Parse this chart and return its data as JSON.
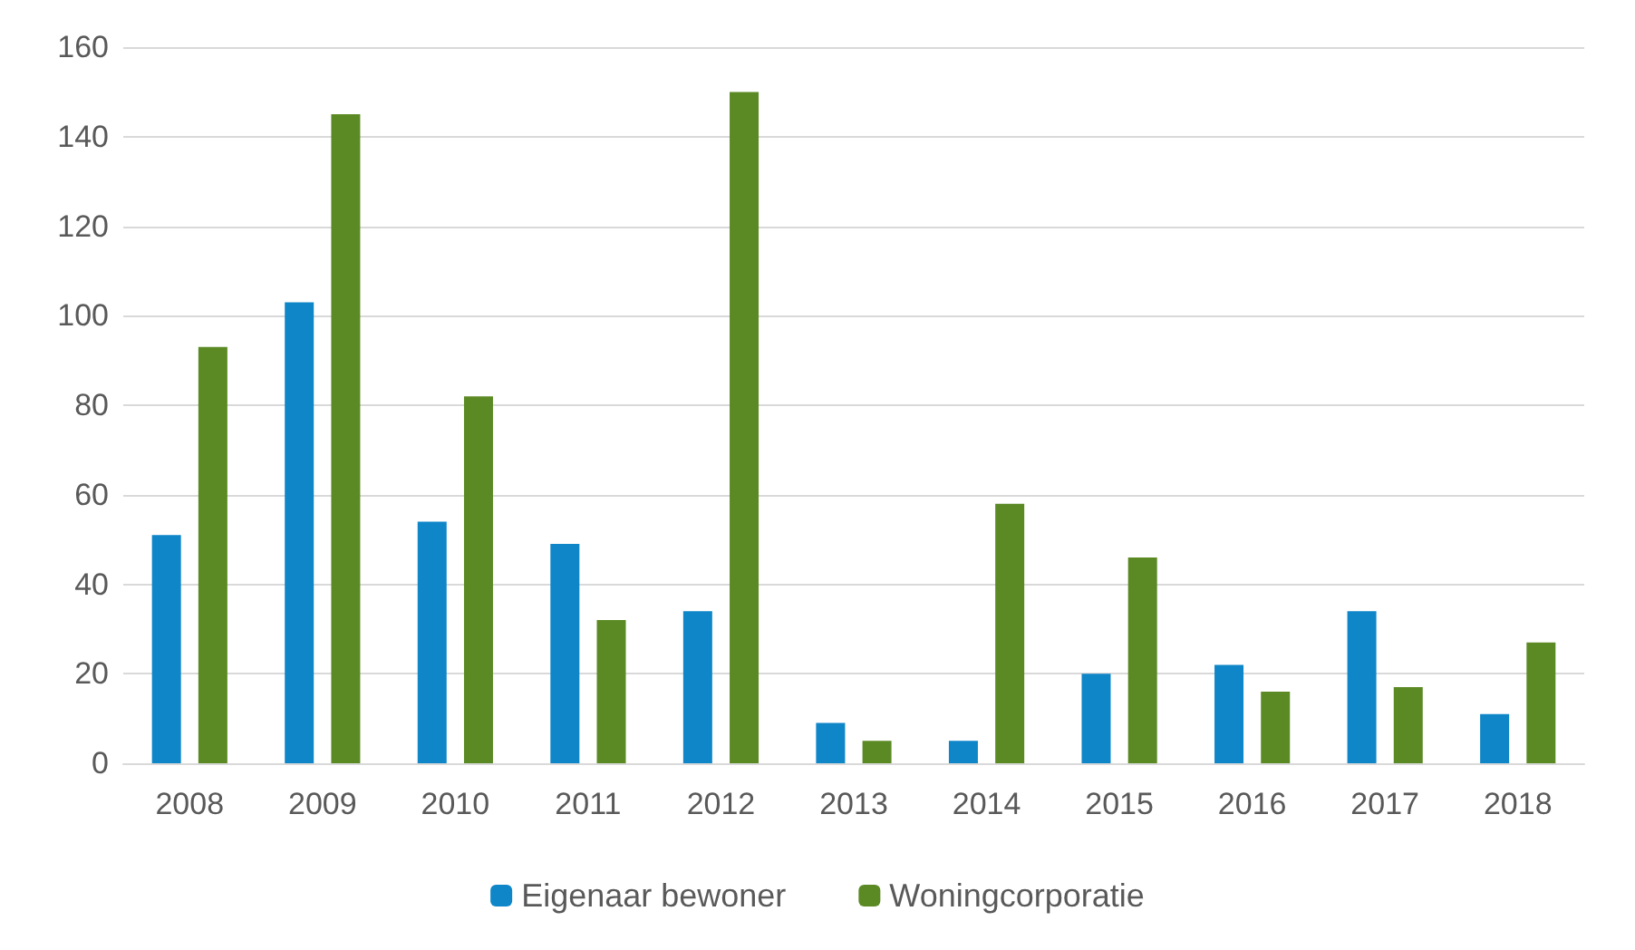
{
  "chart_data": {
    "type": "bar",
    "categories": [
      "2008",
      "2009",
      "2010",
      "2011",
      "2012",
      "2013",
      "2014",
      "2015",
      "2016",
      "2017",
      "2018"
    ],
    "series": [
      {
        "name": "Eigenaar bewoner",
        "color": "#0e86c8",
        "values": [
          51,
          103,
          54,
          49,
          34,
          9,
          5,
          20,
          22,
          34,
          11
        ]
      },
      {
        "name": "Woningcorporatie",
        "color": "#5b8a24",
        "values": [
          93,
          145,
          82,
          32,
          150,
          5,
          58,
          46,
          16,
          17,
          27
        ]
      }
    ],
    "ylim": [
      0,
      160
    ],
    "yticks": [
      0,
      20,
      40,
      60,
      80,
      100,
      120,
      140,
      160
    ],
    "grid": "y",
    "legend": "bottom"
  }
}
